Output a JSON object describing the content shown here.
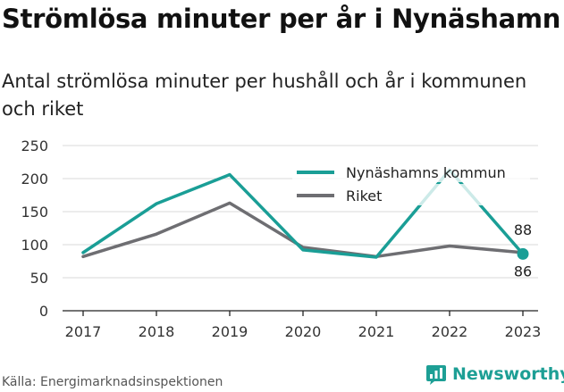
{
  "header": {
    "title": "Strömlösa minuter per år i Nynäshamn",
    "subtitle": "Antal strömlösa minuter per hushåll och år i kommunen och riket"
  },
  "footer": {
    "source": "Källa: Energimarknadsinspektionen",
    "brand": "Newsworthy"
  },
  "colors": {
    "kommun": "#1a9e96",
    "riket": "#6e6e72",
    "grid": "#d9d9d9",
    "axis": "#222222",
    "brand": "#1d9f95"
  },
  "chart_data": {
    "type": "line",
    "x": [
      "2017",
      "2018",
      "2019",
      "2020",
      "2021",
      "2022",
      "2023"
    ],
    "ylim": [
      0,
      250
    ],
    "yticks": [
      0,
      50,
      100,
      150,
      200,
      250
    ],
    "grid": true,
    "legend_position": "top-right",
    "series": [
      {
        "name": "Nynäshamns kommun",
        "values": [
          88,
          162,
          206,
          92,
          81,
          213,
          86
        ],
        "end_label": "86"
      },
      {
        "name": "Riket",
        "values": [
          82,
          116,
          163,
          96,
          82,
          98,
          88
        ],
        "end_label": "88"
      }
    ]
  }
}
